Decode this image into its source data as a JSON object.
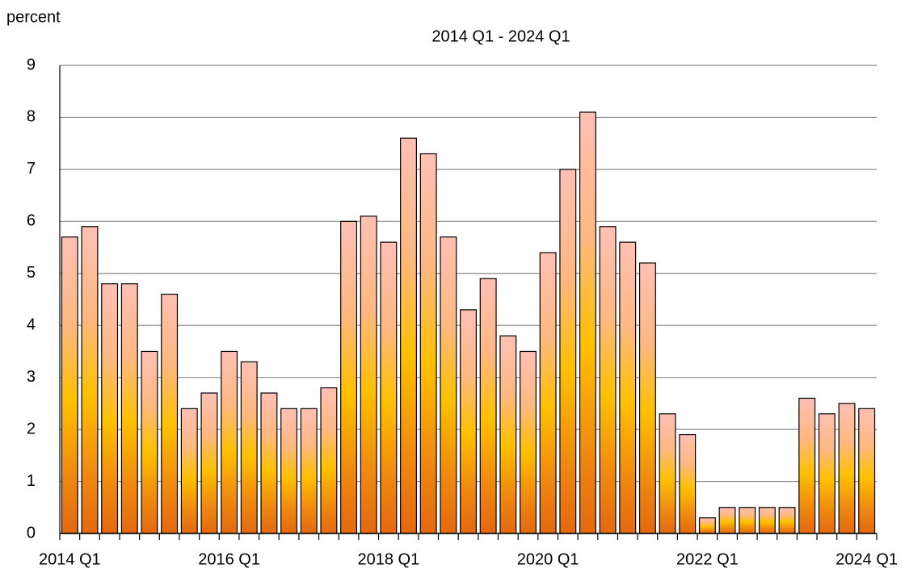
{
  "chart_data": {
    "type": "bar",
    "y_label": "percent",
    "subtitle": "2014 Q1 - 2024 Q1",
    "categories": [
      "2014 Q1",
      null,
      null,
      null,
      null,
      null,
      null,
      null,
      "2016 Q1",
      null,
      null,
      null,
      null,
      null,
      null,
      null,
      "2018 Q1",
      null,
      null,
      null,
      null,
      null,
      null,
      null,
      "2020 Q1",
      null,
      null,
      null,
      null,
      null,
      null,
      null,
      "2022 Q1",
      null,
      null,
      null,
      null,
      null,
      null,
      null,
      "2024 Q1"
    ],
    "values": [
      5.7,
      5.9,
      4.8,
      4.8,
      3.5,
      4.6,
      2.4,
      2.7,
      3.5,
      3.3,
      2.7,
      2.4,
      2.4,
      2.8,
      6.0,
      6.1,
      5.6,
      7.6,
      7.3,
      5.7,
      4.3,
      4.9,
      3.8,
      3.5,
      5.4,
      7.0,
      8.1,
      5.9,
      5.6,
      5.2,
      2.3,
      1.9,
      0.3,
      0.5,
      0.5,
      0.5,
      0.5,
      2.6,
      2.3,
      2.5,
      2.4
    ],
    "ylim": [
      0,
      9
    ],
    "yticks": [
      0,
      1,
      2,
      3,
      4,
      5,
      6,
      7,
      8,
      9
    ],
    "grid": true
  }
}
